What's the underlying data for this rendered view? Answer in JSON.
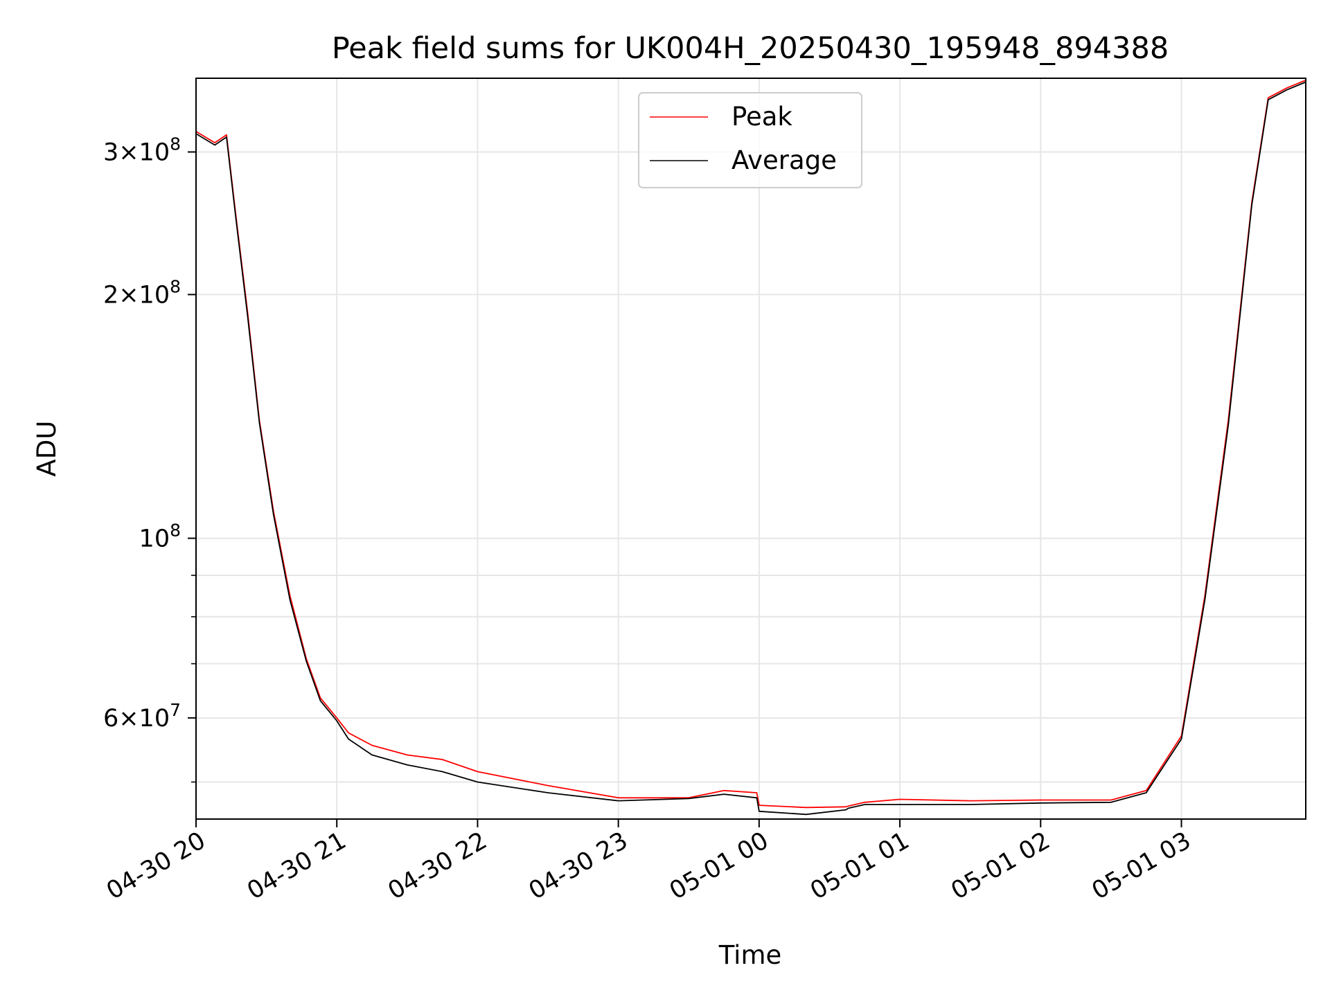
{
  "chart_data": {
    "type": "line",
    "title": "Peak field sums for UK004H_20250430_195948_894388",
    "xlabel": "Time",
    "ylabel": "ADU",
    "x_axis": "datetime",
    "y_scale": "log",
    "xlim": [
      "2025-04-30 20:00",
      "2025-05-01 03:53"
    ],
    "ylim": [
      45000000,
      370000000
    ],
    "grid": true,
    "legend_position": "top-center",
    "x_ticks": [
      {
        "value": "2025-04-30 20:00",
        "label": "04-30 20"
      },
      {
        "value": "2025-04-30 21:00",
        "label": "04-30 21"
      },
      {
        "value": "2025-04-30 22:00",
        "label": "04-30 22"
      },
      {
        "value": "2025-04-30 23:00",
        "label": "04-30 23"
      },
      {
        "value": "2025-05-01 00:00",
        "label": "05-01 00"
      },
      {
        "value": "2025-05-01 01:00",
        "label": "05-01 01"
      },
      {
        "value": "2025-05-01 02:00",
        "label": "05-01 02"
      },
      {
        "value": "2025-05-01 03:00",
        "label": "05-01 03"
      }
    ],
    "y_ticks_major": [
      {
        "value": 300000000,
        "base": "3",
        "sep": "×",
        "exp_base": "10",
        "exp": "8"
      },
      {
        "value": 200000000,
        "base": "2",
        "sep": "×",
        "exp_base": "10",
        "exp": "8"
      },
      {
        "value": 100000000,
        "base": "",
        "sep": "",
        "exp_base": "10",
        "exp": "8"
      },
      {
        "value": 60000000,
        "base": "6",
        "sep": "×",
        "exp_base": "10",
        "exp": "7"
      }
    ],
    "y_ticks_minor": [
      50000000,
      70000000,
      80000000,
      90000000
    ],
    "series": [
      {
        "name": "Peak",
        "color": "#ff0000",
        "x": [
          "2025-04-30 20:00",
          "2025-04-30 20:08",
          "2025-04-30 20:13",
          "2025-04-30 20:17",
          "2025-04-30 20:22",
          "2025-04-30 20:27",
          "2025-04-30 20:33",
          "2025-04-30 20:40",
          "2025-04-30 20:47",
          "2025-04-30 20:53",
          "2025-04-30 21:00",
          "2025-04-30 21:05",
          "2025-04-30 21:15",
          "2025-04-30 21:30",
          "2025-04-30 21:45",
          "2025-04-30 22:00",
          "2025-04-30 22:30",
          "2025-04-30 23:00",
          "2025-04-30 23:30",
          "2025-04-30 23:45",
          "2025-04-30 23:59",
          "2025-05-01 00:00",
          "2025-05-01 00:20",
          "2025-05-01 00:37",
          "2025-05-01 00:38",
          "2025-05-01 00:45",
          "2025-05-01 01:00",
          "2025-05-01 01:30",
          "2025-05-01 02:00",
          "2025-05-01 02:30",
          "2025-05-01 02:45",
          "2025-05-01 03:00",
          "2025-05-01 03:10",
          "2025-05-01 03:20",
          "2025-05-01 03:30",
          "2025-05-01 03:37",
          "2025-05-01 03:45",
          "2025-05-01 03:53"
        ],
        "y": [
          318000000,
          308000000,
          315000000,
          250000000,
          190000000,
          140000000,
          108000000,
          85000000,
          71000000,
          63500000,
          60000000,
          57500000,
          55500000,
          54000000,
          53300000,
          51500000,
          49500000,
          47800000,
          47800000,
          48800000,
          48500000,
          46800000,
          46500000,
          46600000,
          46700000,
          47200000,
          47600000,
          47400000,
          47500000,
          47500000,
          48800000,
          57000000,
          85000000,
          140000000,
          260000000,
          350000000,
          360000000,
          368000000
        ]
      },
      {
        "name": "Average",
        "color": "#000000",
        "x": [
          "2025-04-30 20:00",
          "2025-04-30 20:08",
          "2025-04-30 20:13",
          "2025-04-30 20:17",
          "2025-04-30 20:22",
          "2025-04-30 20:27",
          "2025-04-30 20:33",
          "2025-04-30 20:40",
          "2025-04-30 20:47",
          "2025-04-30 20:53",
          "2025-04-30 21:00",
          "2025-04-30 21:05",
          "2025-04-30 21:15",
          "2025-04-30 21:30",
          "2025-04-30 21:45",
          "2025-04-30 22:00",
          "2025-04-30 22:30",
          "2025-04-30 23:00",
          "2025-04-30 23:30",
          "2025-04-30 23:45",
          "2025-04-30 23:59",
          "2025-05-01 00:00",
          "2025-05-01 00:20",
          "2025-05-01 00:37",
          "2025-05-01 00:38",
          "2025-05-01 00:45",
          "2025-05-01 01:00",
          "2025-05-01 01:30",
          "2025-05-01 02:00",
          "2025-05-01 02:30",
          "2025-05-01 02:45",
          "2025-05-01 03:00",
          "2025-05-01 03:10",
          "2025-05-01 03:20",
          "2025-05-01 03:30",
          "2025-05-01 03:37",
          "2025-05-01 03:45",
          "2025-05-01 03:53"
        ],
        "y": [
          316000000,
          306000000,
          313000000,
          248000000,
          188000000,
          139000000,
          107000000,
          84000000,
          70500000,
          63000000,
          59500000,
          56500000,
          54000000,
          52500000,
          51500000,
          50000000,
          48500000,
          47400000,
          47700000,
          48300000,
          47800000,
          46000000,
          45600000,
          46200000,
          46400000,
          46900000,
          46900000,
          46900000,
          47100000,
          47200000,
          48500000,
          56500000,
          84000000,
          138000000,
          258000000,
          348000000,
          358000000,
          366000000
        ]
      }
    ]
  }
}
